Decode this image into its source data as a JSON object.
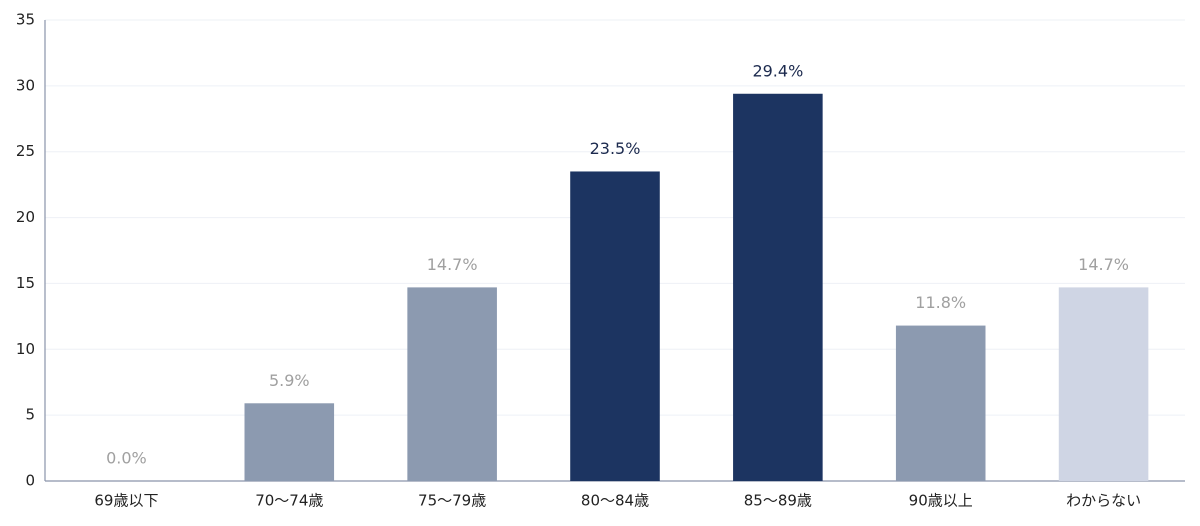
{
  "chart_data": {
    "type": "bar",
    "categories": [
      "69歳以下",
      "70〜74歳",
      "75〜79歳",
      "80〜84歳",
      "85〜89歳",
      "90歳以上",
      "わからない"
    ],
    "values": [
      0,
      5.9,
      14.7,
      23.5,
      29.4,
      11.8,
      14.7
    ],
    "value_labels": [
      "0.0%",
      "5.9%",
      "14.7%",
      "23.5%",
      "29.4%",
      "11.8%",
      "14.7%"
    ],
    "colors": [
      "#8c9ab0",
      "#8c9ab0",
      "#8c9ab0",
      "#1c3461",
      "#1c3461",
      "#8c9ab0",
      "#cfd5e4"
    ],
    "value_label_colors": [
      "#a0a0a0",
      "#a0a0a0",
      "#a0a0a0",
      "#1c2a4e",
      "#1c2a4e",
      "#a0a0a0",
      "#a0a0a0"
    ],
    "ylim": [
      0,
      35
    ],
    "yticks": [
      0,
      5,
      10,
      15,
      20,
      25,
      30,
      35
    ],
    "grid": true
  }
}
